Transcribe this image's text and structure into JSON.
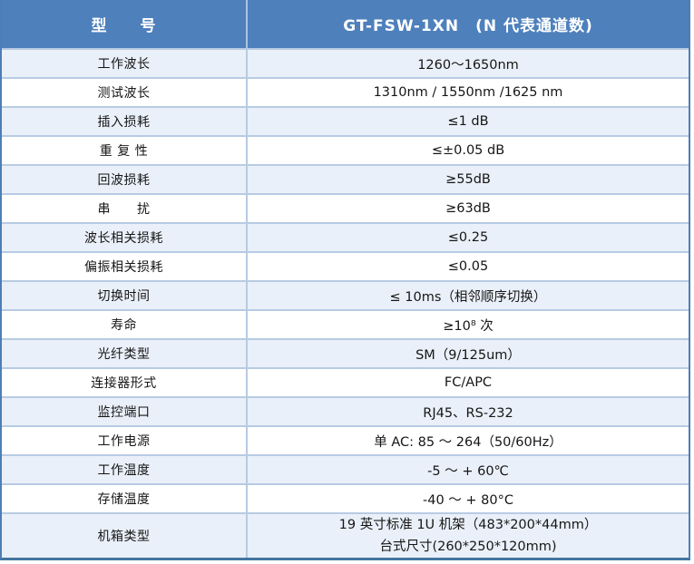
{
  "table": {
    "header": {
      "left": "型　　号",
      "right": "GT-FSW-1XN　(N 代表通道数)"
    },
    "rows": [
      {
        "label": "工作波长",
        "value": "1260～1650nm"
      },
      {
        "label": "测试波长",
        "value": "1310nm / 1550nm /1625 nm"
      },
      {
        "label": "插入损耗",
        "value": "≤1 dB"
      },
      {
        "label": "重 复 性",
        "value": "≤±0.05 dB"
      },
      {
        "label": "回波损耗",
        "value": "≥55dB"
      },
      {
        "label": "串　　扰",
        "value": "≥63dB"
      },
      {
        "label": "波长相关损耗",
        "value": "≤0.25"
      },
      {
        "label": "偏振相关损耗",
        "value": "≤0.05"
      },
      {
        "label": "切换时间",
        "value": "≤ 10ms（相邻顺序切换）"
      },
      {
        "label": "寿命",
        "value": "≥10⁸ 次"
      },
      {
        "label": "光纤类型",
        "value": "SM（9/125um）"
      },
      {
        "label": "连接器形式",
        "value": "FC/APC"
      },
      {
        "label": "监控端口",
        "value": "RJ45、RS-232"
      },
      {
        "label": "工作电源",
        "value": "单 AC: 85 ～ 264（50/60Hz）"
      },
      {
        "label": "工作温度",
        "value": "-5 ～ + 60℃"
      },
      {
        "label": "存储温度",
        "value": "-40 ～ + 80°C"
      },
      {
        "label": "机箱类型",
        "value": [
          "19 英寸标准 1U 机架（483*200*44mm）",
          "台式尺寸(260*250*120mm)"
        ]
      }
    ],
    "colors": {
      "header_bg": "#4E80BC",
      "header_text": "#FFFFFF",
      "row_alt_bg": "#EAF0F9",
      "row_bg": "#FFFFFF",
      "grid_line": "#B7CBE3",
      "outer_border": "#4D7EB5",
      "bottom_border": "#44749F",
      "body_text": "#161616"
    }
  }
}
